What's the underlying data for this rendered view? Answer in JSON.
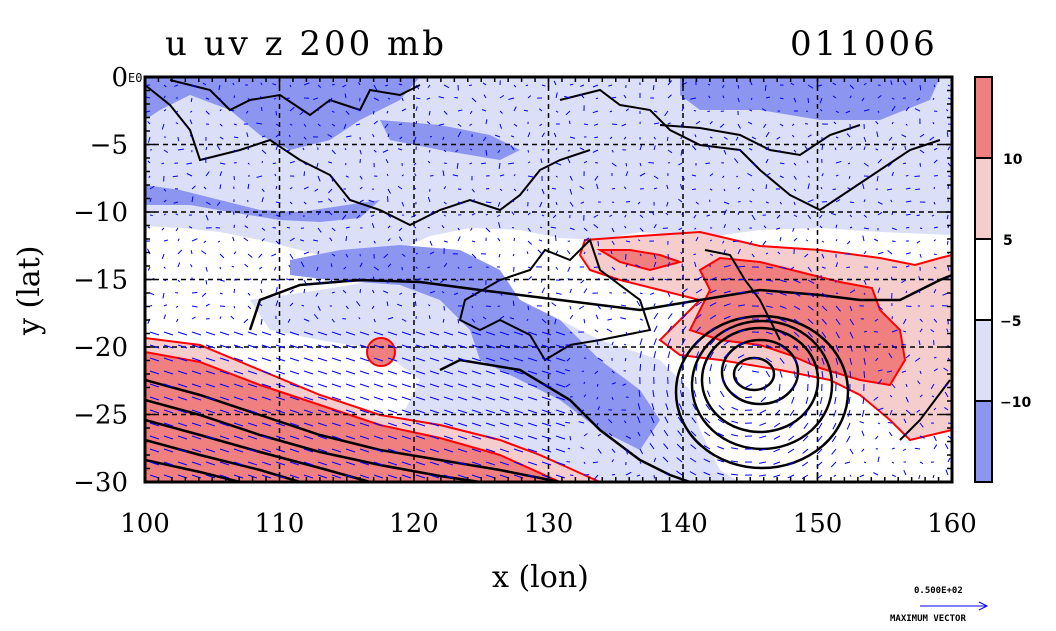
{
  "title_left": "u uv z 200 mb",
  "title_right": "011006",
  "xlabel": "x (lon)",
  "ylabel": "y (lat)",
  "corner_tag": "E0",
  "max_vector": {
    "value": "0.500E+02",
    "label": "MAXIMUM VECTOR"
  },
  "colors": {
    "neg_strong": "#8c96f0",
    "neg_weak": "#dcdff8",
    "pos_weak": "#f6cdcd",
    "pos_strong": "#f08080",
    "contour_red": "#ff0000",
    "vector_blue": "#0000ff",
    "coast": "#000000"
  },
  "chart_data": {
    "type": "map",
    "x_range": [
      100,
      160
    ],
    "y_range": [
      -30,
      0
    ],
    "x_ticks": [
      100,
      110,
      120,
      130,
      140,
      150,
      160
    ],
    "y_ticks": [
      0,
      -5,
      -10,
      -15,
      -20,
      -25,
      -30
    ],
    "x_tick_labels": [
      "100",
      "110",
      "120",
      "130",
      "140",
      "150",
      "160"
    ],
    "y_tick_labels": [
      "0",
      "−5",
      "−10",
      "−15",
      "−20",
      "−25",
      "−30"
    ],
    "grid": true,
    "colorbar": {
      "levels": [
        -10,
        -5,
        5,
        10
      ],
      "labels": [
        "10",
        "5",
        "−5",
        "−10"
      ],
      "bins": [
        "pos_strong",
        "pos_weak",
        "white",
        "neg_weak",
        "neg_strong"
      ]
    },
    "cyclone_center": [
      145,
      -22.5
    ]
  }
}
